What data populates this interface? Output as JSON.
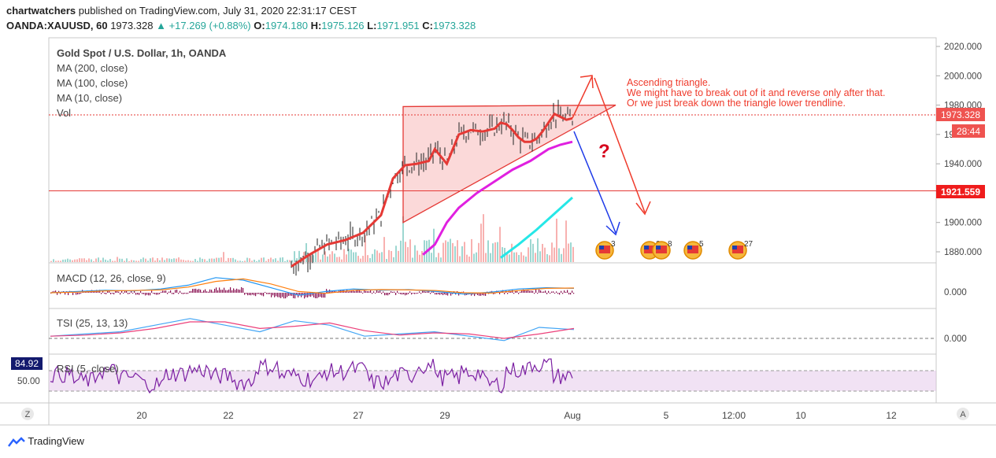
{
  "header": {
    "publisher": "chartwatchers",
    "published_text": "published on TradingView.com, July 31, 2020 22:31:17 CEST",
    "symbol": "OANDA:XAUUSD, 60",
    "last": "1973.328",
    "change_arrow": "▲",
    "change": "+17.269 (+0.88%)",
    "o_label": "O:",
    "o_value": "1974.180",
    "h_label": "H:",
    "h_value": "1975.126",
    "l_label": "L:",
    "l_value": "1971.951",
    "c_label": "C:",
    "c_value": "1973.328"
  },
  "legend": {
    "title": "Gold Spot / U.S. Dollar, 1h, OANDA",
    "ma200": "MA (200, close)",
    "ma100": "MA (100, close)",
    "ma10": "MA (10, close)",
    "vol": "Vol"
  },
  "annotation": {
    "line1": "Ascending triangle.",
    "line2": "We might have to break out of it and reverse only after that.",
    "line3": "Or we just break down the triangle lower trendline.",
    "question": "?"
  },
  "price_tags": {
    "current": "1973.328",
    "countdown": "28:44",
    "level": "1921.559"
  },
  "event_icons": [
    "3",
    "2",
    "8",
    "5",
    "27"
  ],
  "macd": {
    "label": "MACD (12, 26, close, 9)",
    "axis": "0.000"
  },
  "tsi": {
    "label": "TSI (25, 13, 13)",
    "axis": "0.000"
  },
  "rsi": {
    "label": "RSI (5, close)",
    "value_tag": "84.92",
    "axis": "50.00"
  },
  "toolbar": {
    "left_btn": "Z",
    "right_btn": "A"
  },
  "footer": {
    "brand": "TradingView"
  },
  "colors": {
    "price": "#222222",
    "ma10": "#e53935",
    "ma100": "#e020e0",
    "ma200": "#26e7e7",
    "annotation": "#ef3b2c",
    "down_arrow": "#1e3ae8",
    "macd": "#2196f3",
    "signal": "#ff7f0e",
    "hist": "#880e4f",
    "rsi": "#7b1fa2",
    "tsi": "#42a5f5",
    "tsi_signal": "#ec407a"
  },
  "chart_data": {
    "type": "line",
    "y_axis": {
      "ticks": [
        1880,
        1900,
        1920,
        1940,
        1960,
        1980,
        2000,
        2020
      ],
      "tick_labels": [
        "1880.000",
        "1900.000",
        "1920.000",
        "1940.000",
        "1960.000",
        "1980.000",
        "2000.000",
        "2020.000"
      ],
      "range": [
        1872,
        2026
      ]
    },
    "x_axis": {
      "ticks": [
        "20",
        "22",
        "27",
        "29",
        "Aug",
        "5",
        "12:00",
        "10",
        "12"
      ]
    },
    "series": [
      {
        "name": "MA (10, close)",
        "points": [
          [
            0,
            1870
          ],
          [
            3,
            1878
          ],
          [
            6,
            1885
          ],
          [
            9,
            1888
          ],
          [
            12,
            1893
          ],
          [
            15,
            1905
          ],
          [
            17,
            1930
          ],
          [
            19,
            1939
          ],
          [
            21,
            1940
          ],
          [
            23,
            1942
          ],
          [
            24,
            1950
          ],
          [
            25,
            1945
          ],
          [
            26,
            1940
          ],
          [
            27,
            1950
          ],
          [
            28,
            1960
          ],
          [
            30,
            1963
          ],
          [
            32,
            1962
          ],
          [
            34,
            1964
          ],
          [
            35,
            1968
          ],
          [
            36,
            1967
          ],
          [
            37,
            1963
          ],
          [
            38,
            1958
          ],
          [
            39,
            1955
          ],
          [
            40,
            1955
          ],
          [
            41,
            1957
          ],
          [
            42,
            1962
          ],
          [
            43,
            1968
          ],
          [
            44,
            1974
          ],
          [
            45,
            1972
          ],
          [
            46,
            1970
          ],
          [
            47,
            1971
          ]
        ]
      },
      {
        "name": "MA (100, close)",
        "points": [
          [
            22,
            1878
          ],
          [
            24,
            1885
          ],
          [
            26,
            1900
          ],
          [
            28,
            1910
          ],
          [
            31,
            1920
          ],
          [
            34,
            1928
          ],
          [
            37,
            1936
          ],
          [
            40,
            1942
          ],
          [
            43,
            1950
          ],
          [
            45,
            1953
          ],
          [
            47,
            1955
          ]
        ]
      },
      {
        "name": "MA (200, close)",
        "points": [
          [
            35,
            1876
          ],
          [
            38,
            1885
          ],
          [
            41,
            1895
          ],
          [
            44,
            1906
          ],
          [
            47,
            1917
          ]
        ]
      }
    ],
    "levels": [
      {
        "value": 1921.559
      },
      {
        "value": 1973.328
      }
    ],
    "triangle": {
      "top": 1979,
      "apex": 1980,
      "base_low": 1900
    },
    "macd_series": [
      0,
      0.1,
      0.2,
      0.15,
      0.3,
      0.6,
      1.2,
      1.0,
      0.4,
      -0.2,
      0.1,
      0.3,
      0.2,
      0.25,
      0.1,
      -0.1,
      0.05,
      0.3,
      0.4,
      0.35
    ],
    "tsi_series": [
      0.1,
      0.2,
      0.3,
      0.6,
      0.9,
      0.6,
      0.3,
      0.8,
      0.6,
      0.1,
      0.2,
      0.3,
      0.1,
      -0.1,
      0.5,
      0.4
    ],
    "rsi_series": [
      62,
      48,
      70,
      55,
      40,
      64,
      72,
      58,
      45,
      80,
      60,
      52,
      68,
      74,
      44,
      60,
      82,
      55,
      66,
      40,
      72,
      85,
      58,
      62
    ]
  }
}
